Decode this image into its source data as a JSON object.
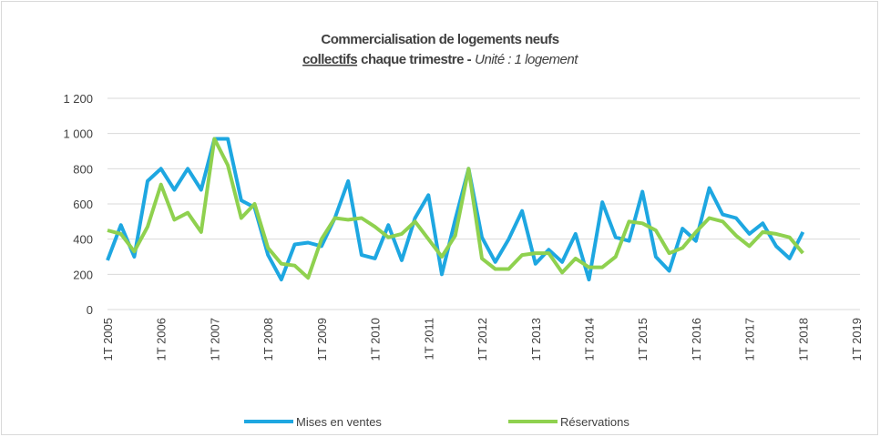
{
  "chart_data": {
    "type": "line",
    "title": "Commercialisation de logements neufs",
    "title_line2": [
      "collectifs",
      "chaque trimestre -",
      "Unité : 1 logement"
    ],
    "categories": [
      "1T 2005",
      null,
      null,
      null,
      "1T 2006",
      null,
      null,
      null,
      "1T 2007",
      null,
      null,
      null,
      "1T 2008",
      null,
      null,
      null,
      "1T 2009",
      null,
      null,
      null,
      "1T 2010",
      null,
      null,
      null,
      "1T 2011",
      null,
      null,
      null,
      "1T 2012",
      null,
      null,
      null,
      "1T 2013",
      null,
      null,
      null,
      "1T 2014",
      null,
      null,
      null,
      "1T 2015",
      null,
      null,
      null,
      "1T 2016",
      null,
      null,
      null,
      "1T 2017",
      null,
      null,
      null,
      "1T 2018",
      null,
      null,
      null,
      "1T 2019"
    ],
    "series": [
      {
        "name": "Mises en ventes",
        "color": "#1ea7e1",
        "values": [
          280,
          480,
          300,
          730,
          800,
          680,
          800,
          680,
          970,
          970,
          620,
          580,
          310,
          170,
          370,
          380,
          360,
          520,
          730,
          310,
          290,
          480,
          280,
          520,
          650,
          200,
          510,
          800,
          410,
          270,
          400,
          560,
          260,
          340,
          270,
          430,
          170,
          610,
          410,
          390,
          670,
          300,
          220,
          460,
          390,
          690,
          540,
          520,
          430,
          490,
          360,
          290,
          440,
          null,
          null,
          null,
          null
        ]
      },
      {
        "name": "Réservations",
        "color": "#8fd14f",
        "values": [
          450,
          430,
          330,
          470,
          710,
          510,
          550,
          440,
          970,
          820,
          520,
          600,
          350,
          260,
          250,
          180,
          400,
          520,
          510,
          520,
          470,
          410,
          430,
          500,
          400,
          300,
          420,
          800,
          290,
          230,
          230,
          310,
          320,
          320,
          210,
          290,
          240,
          240,
          300,
          500,
          490,
          450,
          320,
          350,
          440,
          520,
          500,
          420,
          360,
          440,
          430,
          410,
          320,
          null,
          null,
          null,
          null
        ]
      }
    ],
    "ylim": [
      0,
      1200
    ],
    "yticks": [
      0,
      200,
      400,
      600,
      800,
      {
        "value": 1000,
        "label": "1 000"
      },
      {
        "value": 1200,
        "label": "1 200"
      }
    ],
    "grid": true,
    "legend": "bottom"
  }
}
